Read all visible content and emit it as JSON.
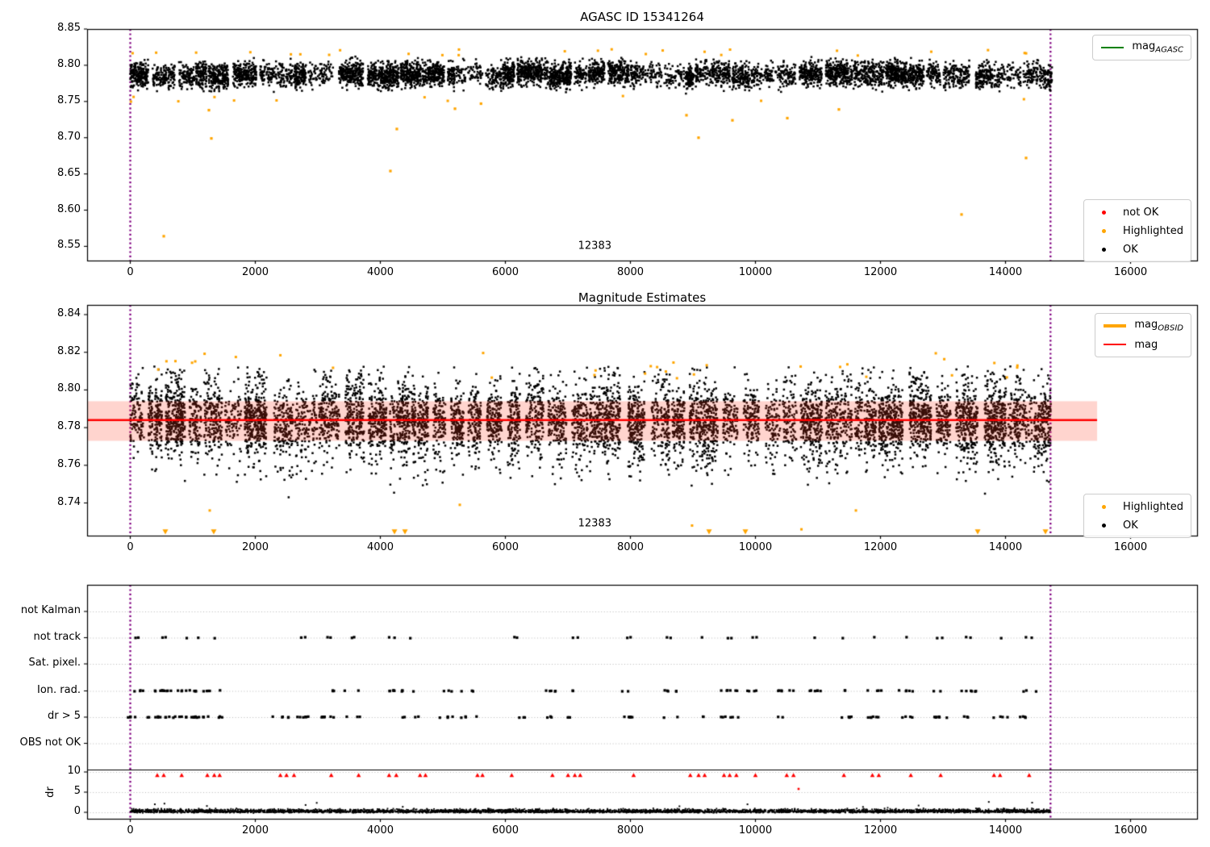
{
  "figure": {
    "background": "#ffffff"
  },
  "colors": {
    "ok": "#000000",
    "highlighted": "#ffa500",
    "not_ok": "#ff0000",
    "mag_agasc_line": "#008000",
    "mag_obsid_line": "#ffa500",
    "mag_line": "#ff0000",
    "mag_band": "rgba(255,60,30,0.22)",
    "obsid_boundary": "#800080",
    "grid": "#b9b9b9",
    "spine": "#000000"
  },
  "legend_text": {
    "agasc": {
      "prefix": "mag",
      "sub": "AGASC"
    },
    "obsid": {
      "prefix": "mag",
      "sub": "OBSID"
    },
    "mag": {
      "label": "mag"
    },
    "top_status": {
      "not_ok": "not OK",
      "highlighted": "Highlighted",
      "ok": "OK"
    },
    "mid_status": {
      "highlighted": "Highlighted",
      "ok": "OK"
    }
  },
  "chart_data": [
    {
      "type": "scatter",
      "title": "AGASC ID 15341264",
      "xlabel": "",
      "ylabel": "",
      "xlim": [
        -690,
        17065
      ],
      "ylim": [
        8.53,
        8.85
      ],
      "x_ticks": [
        0,
        2000,
        4000,
        6000,
        8000,
        10000,
        12000,
        14000,
        16000
      ],
      "y_ticks": [
        "8.55",
        "8.60",
        "8.65",
        "8.70",
        "8.75",
        "8.80",
        "8.85"
      ],
      "grid": false,
      "legend_position": [
        "upper right",
        "lower right"
      ],
      "obsid_vlines": [
        0,
        14720
      ],
      "obsid_label": {
        "text": "12383",
        "x": 7430,
        "y": 8.551
      },
      "series": [
        {
          "name": "OK",
          "color": "#000000",
          "kind": "dense_band",
          "x_range": [
            0,
            14720
          ],
          "y_center": 8.787,
          "y_min": 8.757,
          "y_max": 8.822
        },
        {
          "name": "Highlighted",
          "color": "#ffa500",
          "kind": "scatter",
          "edge_band_high": [
            8.813,
            8.822
          ],
          "edge_band_low": [
            8.748,
            8.758
          ],
          "outliers": [
            [
              536,
              8.564
            ],
            [
              1258,
              8.738
            ],
            [
              1297,
              8.699
            ],
            [
              4161,
              8.654
            ],
            [
              4264,
              8.712
            ],
            [
              5194,
              8.74
            ],
            [
              5610,
              8.747
            ],
            [
              8897,
              8.731
            ],
            [
              9090,
              8.7
            ],
            [
              9632,
              8.724
            ],
            [
              10510,
              8.727
            ],
            [
              11335,
              8.739
            ],
            [
              13297,
              8.594
            ],
            [
              14329,
              8.672
            ]
          ]
        },
        {
          "name": "not OK",
          "color": "#ff0000",
          "kind": "scatter",
          "outliers": []
        }
      ],
      "legend_line": {
        "label": "mag_AGASC",
        "color": "#008000"
      }
    },
    {
      "type": "scatter",
      "title": "Magnitude Estimates",
      "xlabel": "",
      "ylabel": "",
      "xlim": [
        -690,
        17065
      ],
      "ylim": [
        8.7225,
        8.845
      ],
      "x_ticks": [
        0,
        2000,
        4000,
        6000,
        8000,
        10000,
        12000,
        14000,
        16000
      ],
      "y_ticks": [
        "8.74",
        "8.76",
        "8.78",
        "8.80",
        "8.82",
        "8.84"
      ],
      "grid": false,
      "obsid_vlines": [
        0,
        14720
      ],
      "obsid_label": {
        "text": "12383",
        "x": 7430,
        "y": 8.729
      },
      "mag": {
        "value": 8.784,
        "band": [
          8.773,
          8.794
        ],
        "x_end": 15465,
        "line_color": "#ff0000",
        "band_color": "rgba(255,60,30,0.22)"
      },
      "series": [
        {
          "name": "OK",
          "color": "#000000",
          "kind": "dense_band",
          "x_range": [
            0,
            14720
          ],
          "y_center": 8.784,
          "y_min": 8.734,
          "y_max": 8.8125
        },
        {
          "name": "Highlighted",
          "color": "#ffa500",
          "kind": "scatter",
          "edge_band_high": [
            8.806,
            8.82
          ],
          "low_points": [
            [
              1271,
              8.736
            ],
            [
              5271,
              8.739
            ],
            [
              8986,
              8.728
            ],
            [
              10736,
              8.726
            ],
            [
              11607,
              8.736
            ]
          ],
          "clipped_low_x": [
            561,
            1335,
            4226,
            4394,
            9258,
            9839,
            13555,
            14639
          ]
        }
      ]
    },
    {
      "type": "event-flags",
      "rows": [
        "not Kalman",
        "not track",
        "Sat. pixel.",
        "Ion. rad.",
        "dr > 5",
        "OBS not OK"
      ],
      "active_rows": [
        "not track",
        "Ion. rad.",
        "dr > 5"
      ],
      "dr_axis": {
        "label": "dr",
        "ticks": [
          10,
          5,
          0
        ],
        "separator_at": 10.5
      },
      "x_ticks": [
        0,
        2000,
        4000,
        6000,
        8000,
        10000,
        12000,
        14000,
        16000
      ],
      "obsid_vlines": [
        0,
        14720
      ],
      "obsid_clusters_x": [
        100,
        420,
        550,
        700,
        910,
        1100,
        1340,
        2420,
        2760,
        3180,
        3560,
        4190,
        4480,
        5050,
        5430,
        6170,
        6760,
        7110,
        7980,
        8630,
        9140,
        9590,
        9980,
        10500,
        10950,
        11400,
        11920,
        12430,
        12950,
        13400,
        13920,
        14370
      ],
      "dr_clipped_clusters_x": [
        497,
        819,
        1335,
        2497,
        3206,
        3658,
        4187,
        4690,
        5594,
        6110,
        6755,
        7103,
        8045,
        9077,
        9594,
        9981,
        10561,
        11400,
        11916,
        12497,
        12948,
        13877,
        14368
      ],
      "dr_outlier": [
        10690,
        5.8
      ],
      "dr_trace": {
        "range": [
          0,
          1.2
        ],
        "color": "#000000"
      },
      "clipped_color": "#ff0000"
    }
  ]
}
